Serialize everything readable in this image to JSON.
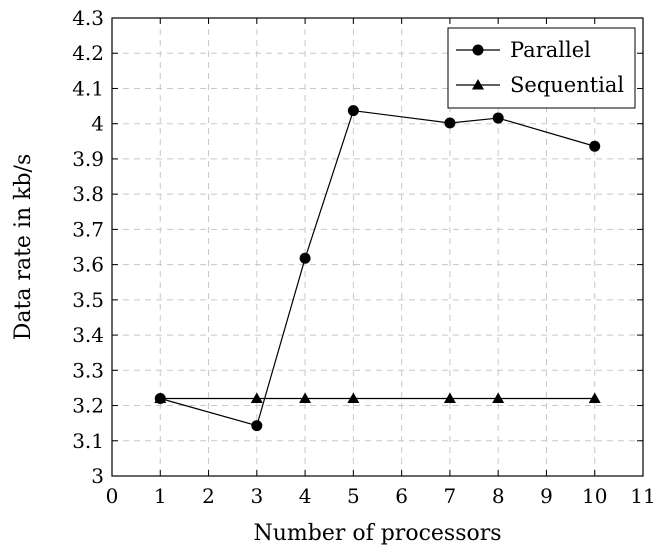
{
  "chart_data": {
    "type": "line",
    "title": "",
    "xlabel": "Number of processors",
    "ylabel": "Data rate in kb/s",
    "xlim": [
      0,
      11
    ],
    "ylim": [
      3.0,
      4.3
    ],
    "x_ticks": [
      0,
      1,
      2,
      3,
      4,
      5,
      6,
      7,
      8,
      9,
      10,
      11
    ],
    "y_ticks": [
      3,
      3.1,
      3.2,
      3.3,
      3.4,
      3.5,
      3.6,
      3.7,
      3.8,
      3.9,
      4,
      4.1,
      4.2,
      4.3
    ],
    "grid": true,
    "legend_position": "top-right",
    "series": [
      {
        "name": "Parallel",
        "marker": "circle",
        "color": "#000000",
        "x": [
          1,
          3,
          4,
          5,
          7,
          8,
          10
        ],
        "y": [
          3.22,
          3.143,
          3.618,
          4.037,
          4.002,
          4.016,
          3.936
        ]
      },
      {
        "name": "Sequential",
        "marker": "triangle",
        "color": "#000000",
        "x": [
          1,
          3,
          4,
          5,
          7,
          8,
          10
        ],
        "y": [
          3.22,
          3.22,
          3.22,
          3.22,
          3.22,
          3.22,
          3.22
        ]
      }
    ]
  }
}
